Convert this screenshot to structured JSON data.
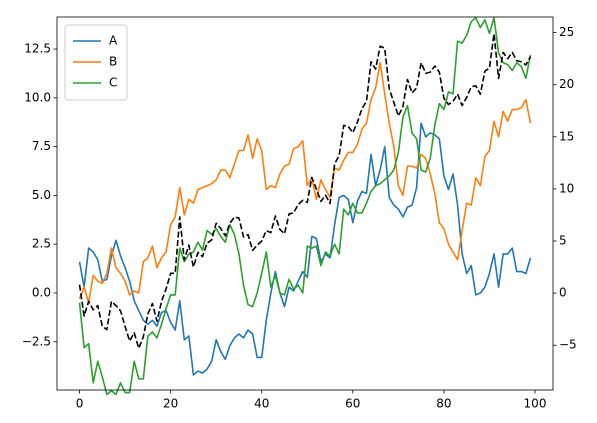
{
  "chart_data": {
    "type": "line",
    "x": [
      0,
      1,
      2,
      3,
      4,
      5,
      6,
      7,
      8,
      9,
      10,
      11,
      12,
      13,
      14,
      15,
      16,
      17,
      18,
      19,
      20,
      21,
      22,
      23,
      24,
      25,
      26,
      27,
      28,
      29,
      30,
      31,
      32,
      33,
      34,
      35,
      36,
      37,
      38,
      39,
      40,
      41,
      42,
      43,
      44,
      45,
      46,
      47,
      48,
      49,
      50,
      51,
      52,
      53,
      54,
      55,
      56,
      57,
      58,
      59,
      60,
      61,
      62,
      63,
      64,
      65,
      66,
      67,
      68,
      69,
      70,
      71,
      72,
      73,
      74,
      75,
      76,
      77,
      78,
      79,
      80,
      81,
      82,
      83,
      84,
      85,
      86,
      87,
      88,
      89,
      90,
      91,
      92,
      93,
      94,
      95,
      96,
      97,
      98,
      99
    ],
    "series": [
      {
        "name": "A",
        "color": "#1f77b4",
        "values": [
          1.6,
          0.3,
          2.3,
          2.1,
          1.7,
          0.6,
          0.7,
          1.9,
          2.7,
          1.9,
          1.3,
          0.6,
          -0.4,
          -0.9,
          -1.4,
          -1.6,
          -1.4,
          -1.7,
          -1.0,
          -0.9,
          -1.5,
          -1.9,
          -0.4,
          -2.4,
          -2.2,
          -4.2,
          -4.0,
          -4.1,
          -3.9,
          -3.5,
          -2.4,
          -3.0,
          -3.4,
          -2.7,
          -2.3,
          -2.1,
          -2.3,
          -1.9,
          -2.1,
          -3.3,
          -3.3,
          -1.4,
          0.0,
          1.1,
          0.0,
          -0.7,
          0.3,
          0.1,
          0.6,
          1.1,
          0.8,
          2.9,
          2.8,
          1.6,
          2.0,
          1.8,
          3.5,
          4.9,
          5.0,
          4.8,
          3.6,
          4.7,
          5.2,
          5.1,
          7.1,
          5.5,
          6.3,
          7.5,
          4.9,
          4.5,
          4.3,
          3.9,
          4.4,
          4.5,
          5.4,
          8.7,
          8.0,
          8.2,
          8.1,
          7.9,
          6.0,
          5.3,
          6.1,
          4.5,
          2.0,
          1.0,
          1.4,
          -0.1,
          0.0,
          0.3,
          1.0,
          2.0,
          0.3,
          2.0,
          2.0,
          2.3,
          1.1,
          1.1,
          1.0,
          1.8
        ]
      },
      {
        "name": "B",
        "color": "#ff7f0e",
        "values": [
          -0.3,
          0.3,
          -0.5,
          0.9,
          0.6,
          0.5,
          1.0,
          2.3,
          1.3,
          1.0,
          0.6,
          -0.1,
          0.1,
          0.0,
          1.6,
          1.8,
          2.4,
          1.3,
          1.8,
          2.1,
          3.5,
          3.9,
          5.4,
          4.0,
          4.8,
          4.6,
          5.3,
          5.4,
          5.5,
          5.6,
          5.8,
          6.3,
          6.3,
          5.9,
          6.6,
          7.3,
          7.3,
          8.1,
          6.9,
          7.9,
          7.3,
          5.3,
          5.5,
          5.4,
          6.1,
          6.5,
          6.6,
          7.4,
          7.5,
          7.8,
          5.5,
          5.9,
          4.8,
          5.8,
          5.3,
          4.9,
          6.4,
          6.3,
          6.8,
          7.2,
          7.2,
          7.6,
          8.4,
          8.7,
          9.9,
          10.5,
          11.8,
          10.2,
          8.7,
          7.5,
          5.5,
          5.0,
          6.5,
          6.5,
          6.4,
          7.1,
          6.9,
          6.1,
          5.1,
          3.6,
          3.3,
          2.5,
          2.1,
          1.7,
          3.2,
          4.6,
          4.5,
          5.9,
          5.5,
          7.0,
          7.3,
          8.8,
          8.0,
          9.3,
          8.8,
          9.4,
          9.4,
          9.5,
          9.9,
          8.7
        ]
      },
      {
        "name": "C",
        "color": "#2ca02c",
        "values": [
          -0.5,
          -2.8,
          -2.6,
          -4.6,
          -3.5,
          -4.3,
          -5.2,
          -5.0,
          -5.2,
          -4.6,
          -5.1,
          -5.1,
          -3.5,
          -4.4,
          -4.4,
          -2.2,
          -2.0,
          -2.3,
          -1.6,
          -0.8,
          -0.1,
          -0.1,
          2.3,
          1.6,
          2.0,
          2.1,
          2.6,
          2.2,
          3.2,
          3.0,
          3.3,
          2.9,
          2.6,
          3.5,
          3.0,
          2.0,
          0.4,
          -0.6,
          -0.7,
          0.0,
          1.0,
          2.1,
          0.3,
          0.9,
          0.0,
          -0.1,
          0.7,
          0.2,
          0.4,
          0.0,
          2.4,
          2.3,
          2.4,
          1.4,
          2.1,
          1.9,
          2.5,
          2.0,
          4.3,
          4.0,
          4.6,
          4.1,
          4.1,
          4.6,
          5.2,
          5.5,
          5.6,
          5.8,
          6.0,
          6.3,
          7.2,
          9.0,
          9.6,
          8.2,
          7.9,
          6.3,
          6.2,
          6.9,
          8.6,
          9.7,
          9.4,
          10.3,
          10.2,
          12.9,
          12.8,
          13.2,
          13.9,
          14.1,
          13.6,
          14.0,
          13.3,
          14.1,
          12.3,
          11.8,
          11.7,
          11.4,
          11.8,
          11.6,
          11.0,
          12.2
        ]
      },
      {
        "color": "#000000",
        "axis": "y2",
        "linestyle": "dashed",
        "values": [
          0.8,
          -2.2,
          -0.8,
          -1.6,
          -1.2,
          -3.2,
          -3.5,
          -0.8,
          -1.2,
          -1.7,
          -3.2,
          -4.6,
          -3.8,
          -5.3,
          -4.2,
          -2.0,
          -1.0,
          -2.7,
          -0.8,
          0.4,
          1.9,
          1.9,
          7.3,
          3.2,
          4.6,
          2.5,
          3.9,
          3.5,
          4.8,
          5.1,
          6.7,
          6.2,
          5.5,
          6.7,
          7.3,
          7.2,
          5.4,
          5.6,
          4.1,
          4.6,
          5.0,
          6.0,
          5.8,
          7.4,
          6.1,
          5.7,
          7.6,
          7.7,
          8.5,
          8.9,
          8.7,
          11.1,
          10.0,
          8.8,
          9.4,
          8.6,
          12.4,
          13.2,
          16.1,
          16.0,
          15.4,
          16.4,
          17.7,
          18.4,
          22.2,
          21.5,
          23.7,
          23.5,
          19.6,
          18.3,
          17.0,
          17.9,
          20.5,
          19.2,
          19.7,
          22.1,
          21.1,
          21.2,
          21.8,
          21.2,
          18.7,
          18.1,
          18.4,
          19.1,
          18.0,
          18.8,
          19.8,
          19.9,
          19.1,
          21.3,
          21.6,
          24.9,
          20.6,
          23.1,
          22.5,
          23.1,
          22.3,
          22.2,
          21.9,
          22.7
        ]
      }
    ],
    "xlim": [
      -4.95,
      103.95
    ],
    "xticks": [
      0,
      20,
      40,
      60,
      80,
      100
    ],
    "ylim": [
      -4.97,
      14.14
    ],
    "yticks": [
      {
        "value": -2.5,
        "label": "−2.5"
      },
      {
        "value": 0,
        "label": "0.0"
      },
      2.5,
      {
        "value": 5,
        "label": "5.0"
      },
      7.5,
      {
        "value": 10,
        "label": "10.0"
      },
      12.5
    ],
    "y2lim": [
      -9.3,
      26.5
    ],
    "y2ticks": [
      {
        "value": -5,
        "label": "−5"
      },
      0,
      5,
      10,
      15,
      20,
      25
    ],
    "legend": "upper left",
    "grid": false
  }
}
